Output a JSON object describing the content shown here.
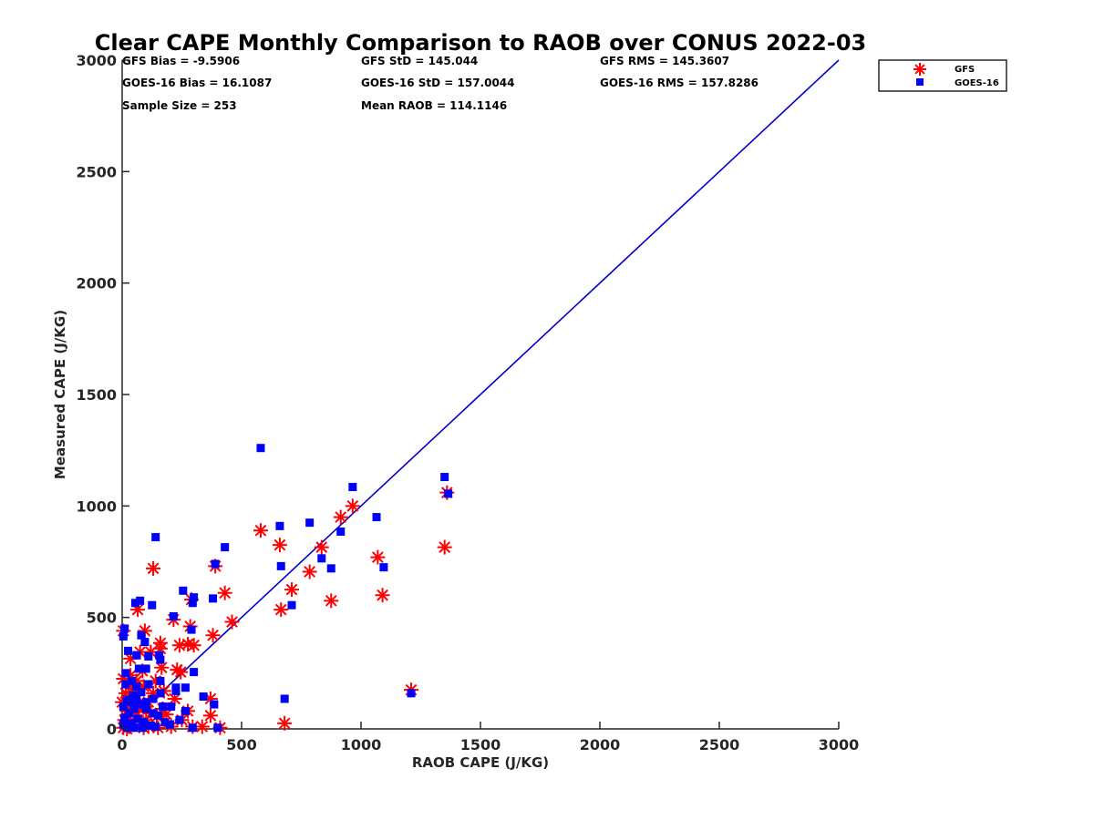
{
  "chart_data": {
    "type": "scatter",
    "title": "Clear CAPE Monthly Comparison to RAOB over CONUS 2022-03",
    "xlabel": "RAOB CAPE (J/KG)",
    "ylabel": "Measured CAPE (J/KG)",
    "xlim": [
      0,
      3000
    ],
    "ylim": [
      0,
      3000
    ],
    "xticks": [
      0,
      500,
      1000,
      1500,
      2000,
      2500,
      3000
    ],
    "yticks": [
      0,
      500,
      1000,
      1500,
      2000,
      2500,
      3000
    ],
    "xtick_labels": [
      "0",
      "500",
      "1000",
      "1500",
      "2000",
      "2500",
      "3000"
    ],
    "ytick_labels": [
      "0",
      "500",
      "1000",
      "1500",
      "2000",
      "2500",
      "3000"
    ],
    "grid": false,
    "legend": {
      "placement": "top-right outside",
      "entries": [
        "GFS",
        "GOES-16"
      ]
    },
    "reference_line": {
      "name": "1:1 line",
      "x": [
        0,
        3000
      ],
      "y": [
        0,
        3000
      ],
      "color": "#0000cc"
    },
    "stats": [
      [
        "GFS Bias = -9.5906",
        "GFS StD = 145.044",
        "GFS RMS = 145.3607"
      ],
      [
        "GOES-16 Bias = 16.1087",
        "GOES-16 StD = 157.0044",
        "GOES-16 RMS = 157.8286"
      ],
      [
        "Sample Size = 253",
        "Mean RAOB = 114.1146",
        ""
      ]
    ],
    "series": [
      {
        "name": "GFS",
        "marker": "asterisk",
        "color": "#ff0000",
        "points": [
          [
            580,
            890
          ],
          [
            965,
            1000
          ],
          [
            915,
            950
          ],
          [
            1360,
            1060
          ],
          [
            1350,
            815
          ],
          [
            1070,
            770
          ],
          [
            1090,
            600
          ],
          [
            660,
            825
          ],
          [
            835,
            815
          ],
          [
            785,
            705
          ],
          [
            710,
            625
          ],
          [
            665,
            535
          ],
          [
            875,
            575
          ],
          [
            680,
            25
          ],
          [
            130,
            720
          ],
          [
            390,
            730
          ],
          [
            430,
            610
          ],
          [
            460,
            480
          ],
          [
            290,
            580
          ],
          [
            1210,
            175
          ],
          [
            65,
            535
          ],
          [
            380,
            420
          ],
          [
            285,
            460
          ],
          [
            215,
            490
          ],
          [
            95,
            440
          ],
          [
            5,
            440
          ],
          [
            245,
            255
          ],
          [
            160,
            385
          ],
          [
            275,
            380
          ],
          [
            300,
            375
          ],
          [
            240,
            375
          ],
          [
            160,
            360
          ],
          [
            120,
            345
          ],
          [
            35,
            315
          ],
          [
            165,
            275
          ],
          [
            230,
            265
          ],
          [
            140,
            215
          ],
          [
            60,
            215
          ],
          [
            5,
            225
          ],
          [
            220,
            135
          ],
          [
            370,
            135
          ],
          [
            175,
            170
          ],
          [
            85,
            260
          ],
          [
            110,
            120
          ],
          [
            275,
            80
          ],
          [
            370,
            60
          ],
          [
            185,
            65
          ],
          [
            145,
            55
          ],
          [
            295,
            10
          ],
          [
            335,
            10
          ],
          [
            410,
            5
          ],
          [
            205,
            10
          ],
          [
            250,
            40
          ],
          [
            170,
            90
          ],
          [
            120,
            70
          ],
          [
            60,
            150
          ],
          [
            40,
            110
          ],
          [
            20,
            80
          ],
          [
            10,
            40
          ],
          [
            5,
            5
          ],
          [
            30,
            10
          ],
          [
            50,
            30
          ],
          [
            80,
            20
          ],
          [
            100,
            40
          ],
          [
            70,
            90
          ],
          [
            15,
            160
          ],
          [
            45,
            180
          ],
          [
            90,
            190
          ],
          [
            130,
            160
          ],
          [
            25,
            60
          ],
          [
            60,
            60
          ],
          [
            110,
            10
          ],
          [
            150,
            5
          ],
          [
            0,
            120
          ],
          [
            35,
            240
          ],
          [
            75,
            345
          ],
          [
            20,
            0
          ],
          [
            90,
            5
          ]
        ]
      },
      {
        "name": "GOES-16",
        "marker": "square",
        "color": "#0000ff",
        "points": [
          [
            580,
            1260
          ],
          [
            965,
            1085
          ],
          [
            1350,
            1130
          ],
          [
            1365,
            1055
          ],
          [
            1065,
            950
          ],
          [
            785,
            925
          ],
          [
            660,
            910
          ],
          [
            915,
            885
          ],
          [
            140,
            860
          ],
          [
            430,
            815
          ],
          [
            835,
            765
          ],
          [
            665,
            730
          ],
          [
            875,
            720
          ],
          [
            1095,
            725
          ],
          [
            710,
            555
          ],
          [
            680,
            135
          ],
          [
            1210,
            160
          ],
          [
            390,
            740
          ],
          [
            300,
            590
          ],
          [
            295,
            565
          ],
          [
            75,
            575
          ],
          [
            55,
            565
          ],
          [
            125,
            555
          ],
          [
            380,
            585
          ],
          [
            255,
            620
          ],
          [
            215,
            505
          ],
          [
            290,
            445
          ],
          [
            5,
            415
          ],
          [
            10,
            450
          ],
          [
            80,
            420
          ],
          [
            95,
            390
          ],
          [
            25,
            350
          ],
          [
            60,
            330
          ],
          [
            110,
            325
          ],
          [
            155,
            330
          ],
          [
            160,
            310
          ],
          [
            70,
            270
          ],
          [
            100,
            270
          ],
          [
            160,
            215
          ],
          [
            225,
            185
          ],
          [
            265,
            185
          ],
          [
            300,
            255
          ],
          [
            340,
            145
          ],
          [
            385,
            110
          ],
          [
            400,
            5
          ],
          [
            295,
            5
          ],
          [
            200,
            20
          ],
          [
            205,
            100
          ],
          [
            225,
            170
          ],
          [
            160,
            160
          ],
          [
            130,
            135
          ],
          [
            100,
            120
          ],
          [
            75,
            110
          ],
          [
            50,
            90
          ],
          [
            30,
            70
          ],
          [
            10,
            50
          ],
          [
            5,
            20
          ],
          [
            40,
            25
          ],
          [
            65,
            45
          ],
          [
            90,
            30
          ],
          [
            120,
            15
          ],
          [
            150,
            60
          ],
          [
            170,
            100
          ],
          [
            20,
            130
          ],
          [
            45,
            150
          ],
          [
            80,
            165
          ],
          [
            15,
            200
          ],
          [
            40,
            215
          ],
          [
            110,
            200
          ],
          [
            60,
            190
          ],
          [
            130,
            70
          ],
          [
            180,
            30
          ],
          [
            240,
            40
          ],
          [
            265,
            80
          ],
          [
            20,
            5
          ],
          [
            50,
            5
          ],
          [
            85,
            5
          ],
          [
            140,
            10
          ],
          [
            5,
            100
          ],
          [
            35,
            120
          ],
          [
            60,
            130
          ],
          [
            100,
            90
          ],
          [
            15,
            250
          ]
        ]
      }
    ]
  }
}
